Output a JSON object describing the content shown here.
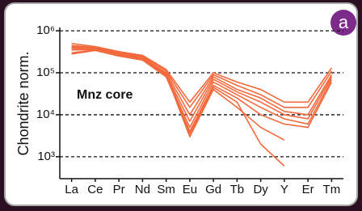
{
  "chart_data": {
    "type": "line",
    "panel_label": "a",
    "ylabel": "Chondrite norm.",
    "annotation": "Mnz core",
    "log_scale": true,
    "grid": true,
    "color": "#f26a3d",
    "categories": [
      "La",
      "Ce",
      "Pr",
      "Nd",
      "Sm",
      "Eu",
      "Gd",
      "Tb",
      "Dy",
      "Y",
      "Er",
      "Tm"
    ],
    "ylim": [
      300,
      1200000
    ],
    "yticks": [
      {
        "value": 1000,
        "label": "10³"
      },
      {
        "value": 10000,
        "label": "10⁴"
      },
      {
        "value": 100000,
        "label": "10⁵"
      },
      {
        "value": 1000000,
        "label": "10⁶"
      }
    ],
    "series": [
      {
        "color": "#f26a3d",
        "values": [
          500000,
          420000,
          320000,
          260000,
          120000,
          20000,
          100000,
          60000,
          40000,
          20000,
          20000,
          130000
        ]
      },
      {
        "color": "#f26a3d",
        "values": [
          450000,
          400000,
          300000,
          250000,
          110000,
          15000,
          90000,
          50000,
          30000,
          15000,
          15000,
          110000
        ]
      },
      {
        "color": "#f26a3d",
        "values": [
          400000,
          380000,
          280000,
          230000,
          100000,
          10000,
          80000,
          40000,
          25000,
          12000,
          10000,
          90000
        ]
      },
      {
        "color": "#f26a3d",
        "values": [
          350000,
          360000,
          270000,
          220000,
          90000,
          7000,
          70000,
          35000,
          20000,
          10000,
          8000,
          80000
        ]
      },
      {
        "color": "#f26a3d",
        "values": [
          300000,
          350000,
          260000,
          210000,
          85000,
          5000,
          60000,
          30000,
          15000,
          8000,
          6000,
          70000
        ]
      },
      {
        "color": "#f26a3d",
        "values": [
          280000,
          340000,
          250000,
          200000,
          80000,
          4000,
          50000,
          25000,
          10000,
          6000,
          5000,
          60000
        ]
      },
      {
        "color": "#f26a3d",
        "values": [
          420000,
          380000,
          290000,
          240000,
          95000,
          3500,
          45000,
          20000,
          2000,
          600,
          null,
          null
        ]
      },
      {
        "color": "#f26a3d",
        "values": [
          380000,
          370000,
          270000,
          230000,
          90000,
          3000,
          40000,
          15000,
          5000,
          2500,
          null,
          null
        ]
      }
    ]
  }
}
